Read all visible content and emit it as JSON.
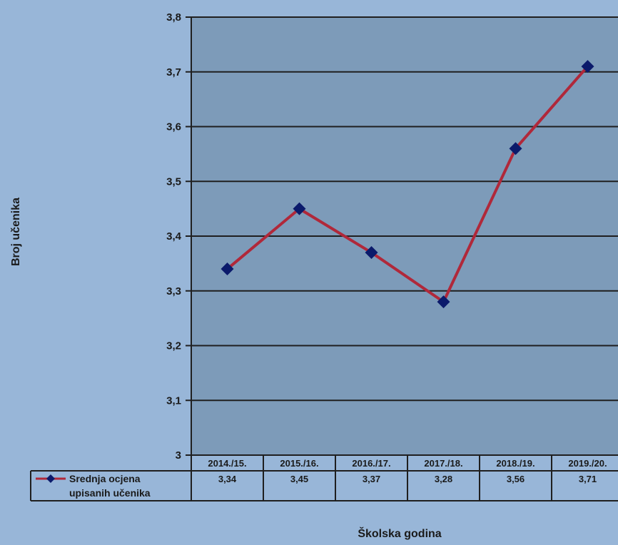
{
  "colors": {
    "page_background": "#98b6d8",
    "plot_background": "#7d9bb9",
    "gridline": "#1f1f1f",
    "line": "#b0283a",
    "marker": "#0b1a6b"
  },
  "chart_data": {
    "type": "line",
    "categories": [
      "2014./15.",
      "2015./16.",
      "2016./17.",
      "2017./18.",
      "2018./19.",
      "2019./20."
    ],
    "series": [
      {
        "name": "Srednja ocjena upisanih učenika",
        "values": [
          3.34,
          3.45,
          3.37,
          3.28,
          3.56,
          3.71
        ],
        "value_labels": [
          "3,34",
          "3,45",
          "3,37",
          "3,28",
          "3,56",
          "3,71"
        ]
      }
    ],
    "legend_lines": [
      "Srednja ocjena",
      "upisanih učenika"
    ],
    "xlabel": "Školska godina",
    "ylabel": "Broj učenika",
    "ylim": [
      3,
      3.8
    ],
    "yticks": [
      3,
      3.1,
      3.2,
      3.3,
      3.4,
      3.5,
      3.6,
      3.7,
      3.8
    ],
    "ytick_labels": [
      "3",
      "3,1",
      "3,2",
      "3,3",
      "3,4",
      "3,5",
      "3,6",
      "3,7",
      "3,8"
    ],
    "grid": true,
    "data_table": true,
    "marker": "diamond"
  }
}
